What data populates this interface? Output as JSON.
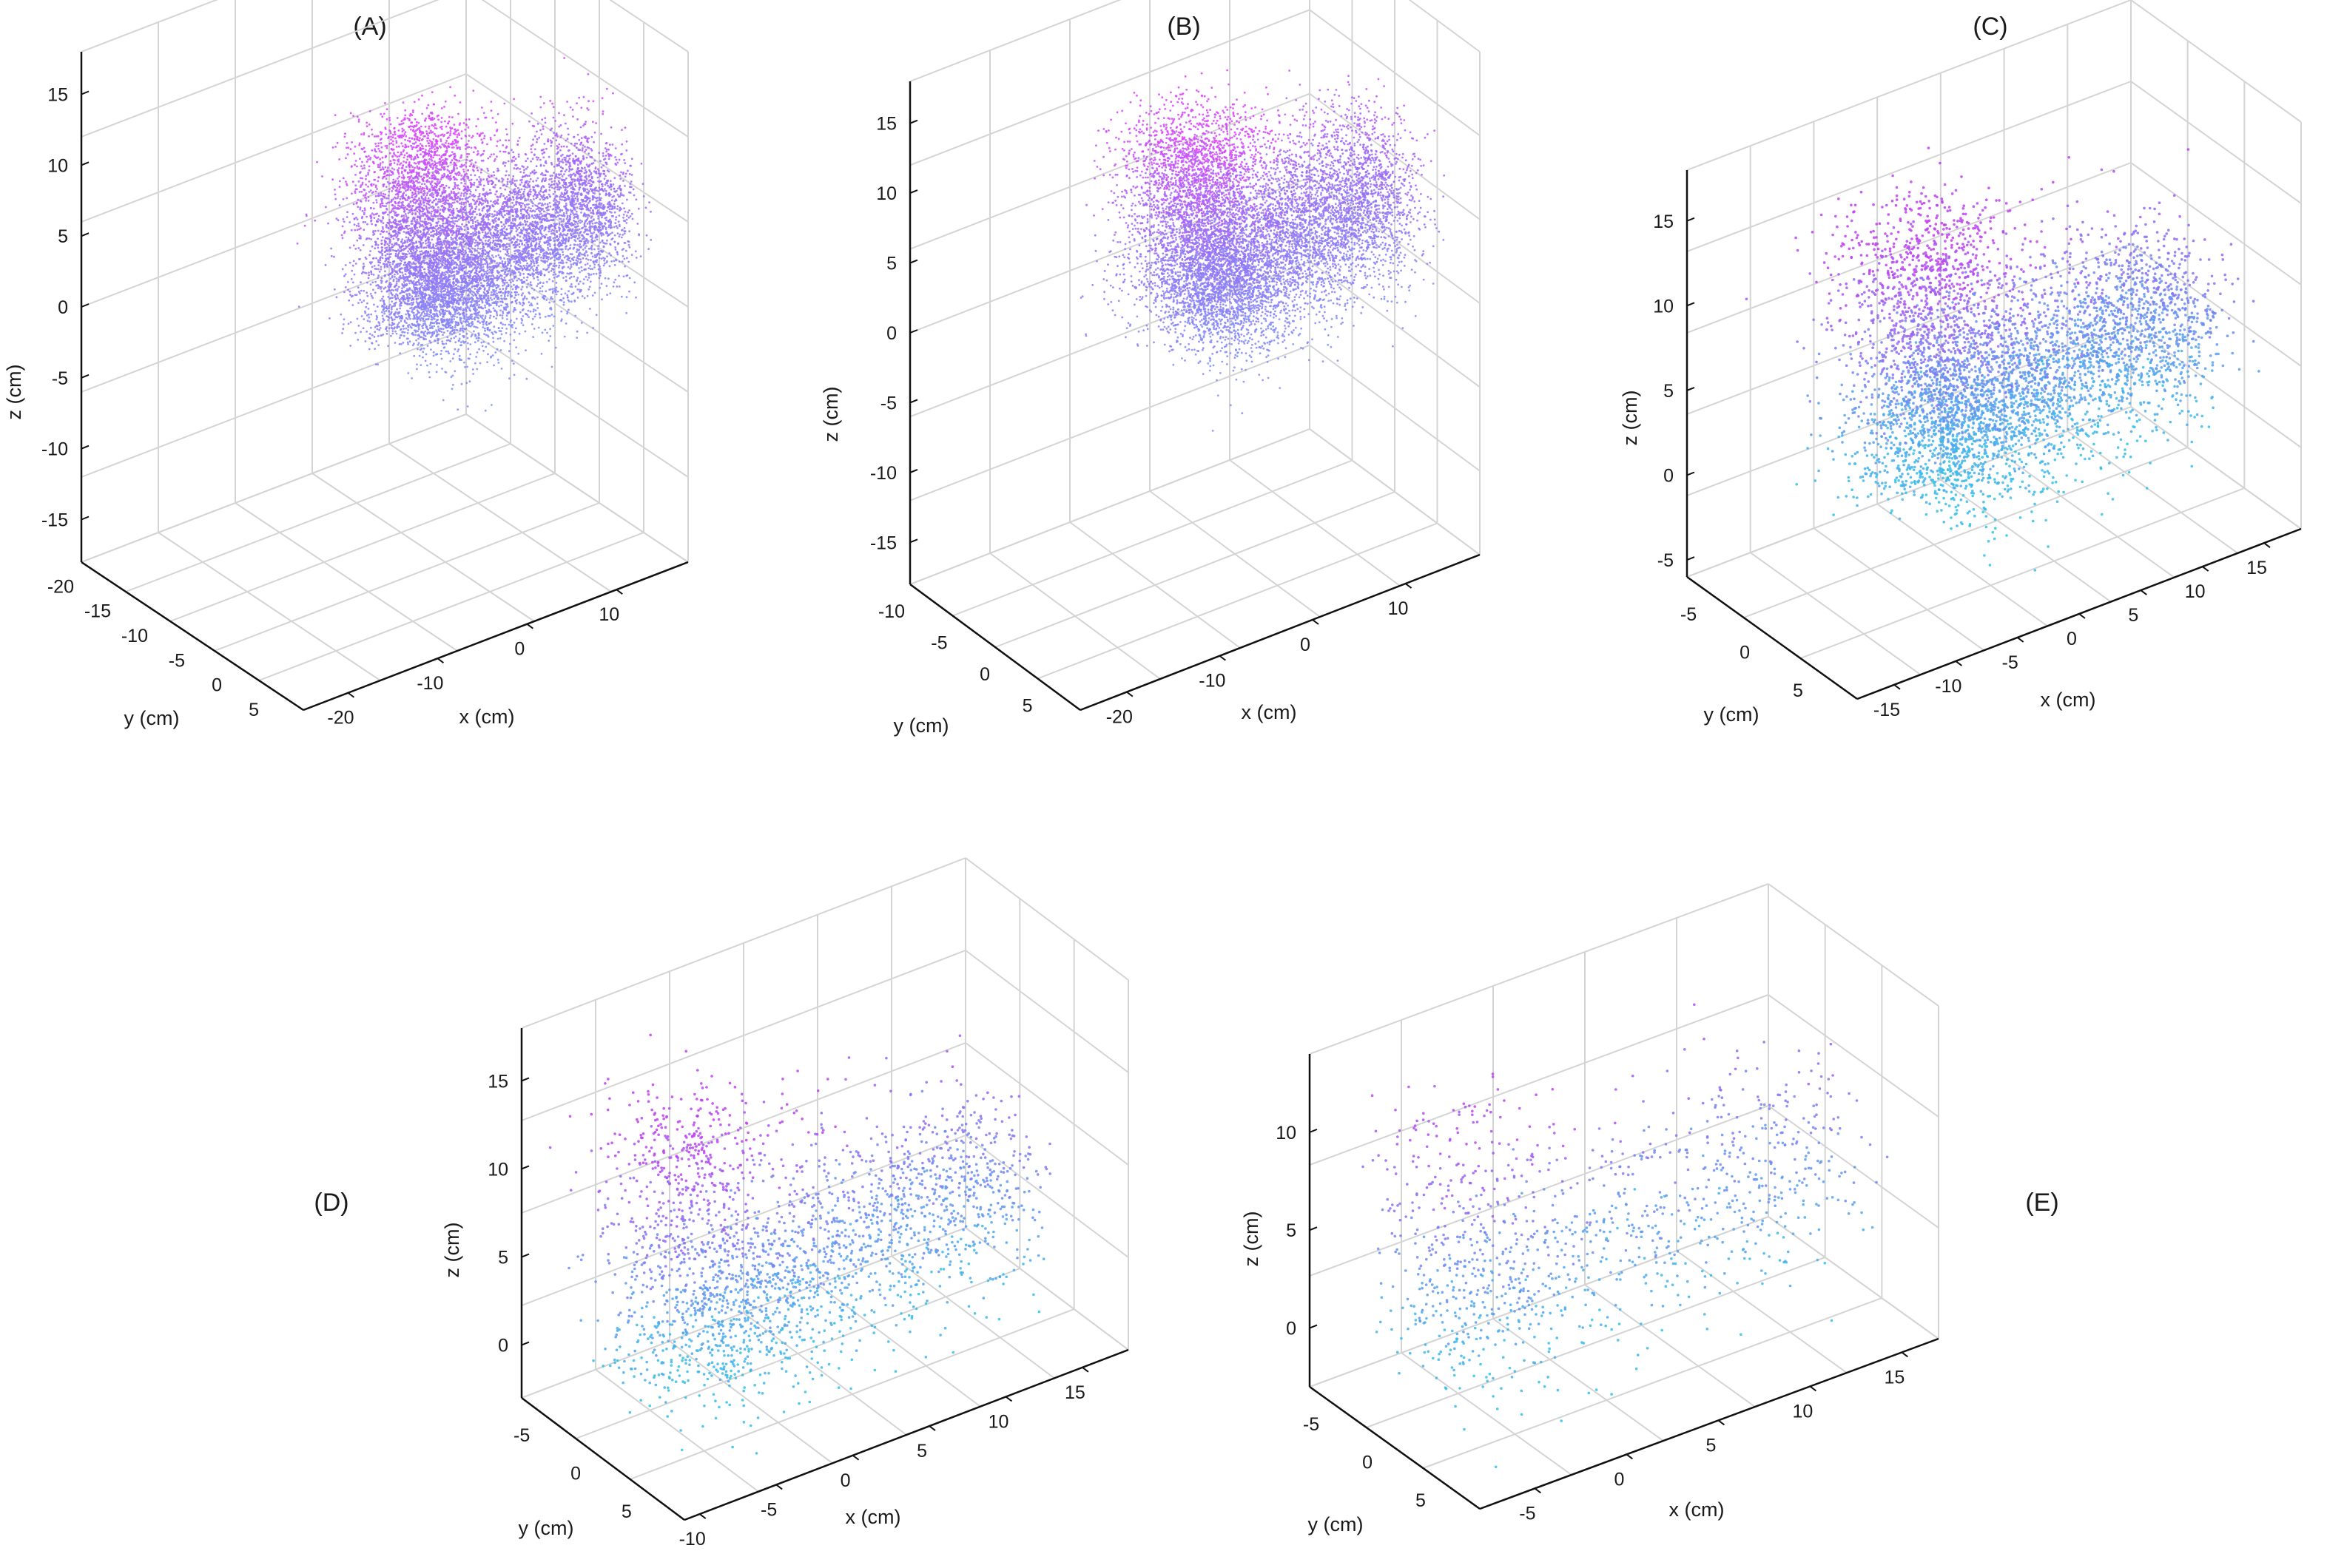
{
  "figure": {
    "description_free": true
  },
  "chart_data": [
    {
      "type": "scatter",
      "panel": "(A)",
      "xlabel": "x (cm)",
      "ylabel": "y (cm)",
      "zlabel": "z (cm)",
      "x_ticks": [
        "-20",
        "-10",
        "0",
        "10"
      ],
      "y_ticks": [
        "5",
        "0",
        "-5",
        "-10",
        "-15",
        "-20"
      ],
      "z_ticks": [
        "15",
        "10",
        "5",
        "0",
        "-5",
        "-10",
        "-15"
      ],
      "xlim": [
        -25,
        18
      ],
      "ylim": [
        -22,
        8
      ],
      "zlim": [
        -18,
        18
      ],
      "grid": true,
      "point_density": "dense",
      "colors": {
        "high": "#e040fb",
        "mid": "#9b6cf5",
        "low": "#7f8ff7"
      }
    },
    {
      "type": "scatter",
      "panel": "(B)",
      "xlabel": "x (cm)",
      "ylabel": "y (cm)",
      "zlabel": "z (cm)",
      "x_ticks": [
        "-20",
        "-10",
        "0",
        "10"
      ],
      "y_ticks": [
        "5",
        "0",
        "-5",
        "-10"
      ],
      "z_ticks": [
        "15",
        "10",
        "5",
        "0",
        "-5",
        "-10",
        "-15"
      ],
      "xlim": [
        -25,
        18
      ],
      "ylim": [
        -12,
        8
      ],
      "zlim": [
        -18,
        18
      ],
      "grid": true,
      "point_density": "dense",
      "colors": {
        "high": "#e040fb",
        "mid": "#9b6cf5",
        "low": "#7f8ff7"
      }
    },
    {
      "type": "scatter",
      "panel": "(C)",
      "xlabel": "x (cm)",
      "ylabel": "y (cm)",
      "zlabel": "z (cm)",
      "x_ticks": [
        "-15",
        "-10",
        "-5",
        "0",
        "5",
        "10",
        "15"
      ],
      "y_ticks": [
        "5",
        "0",
        "-5"
      ],
      "z_ticks": [
        "15",
        "10",
        "5",
        "0",
        "-5"
      ],
      "xlim": [
        -18,
        18
      ],
      "ylim": [
        -8,
        8
      ],
      "zlim": [
        -6,
        18
      ],
      "grid": true,
      "point_density": "medium",
      "colors": {
        "high": "#c040f0",
        "mid": "#7a80f2",
        "low": "#33c1e8"
      }
    },
    {
      "type": "scatter",
      "panel": "(D)",
      "xlabel": "x (cm)",
      "ylabel": "y (cm)",
      "zlabel": "z (cm)",
      "x_ticks": [
        "-10",
        "-5",
        "0",
        "5",
        "10",
        "15"
      ],
      "y_ticks": [
        "5",
        "0",
        "-5"
      ],
      "z_ticks": [
        "15",
        "10",
        "5",
        "0"
      ],
      "xlim": [
        -11,
        18
      ],
      "ylim": [
        -8,
        8
      ],
      "zlim": [
        -3,
        18
      ],
      "grid": true,
      "point_density": "sparse",
      "colors": {
        "high": "#c040f0",
        "mid": "#7a80f2",
        "low": "#33c1e8"
      }
    },
    {
      "type": "scatter",
      "panel": "(E)",
      "xlabel": "x (cm)",
      "ylabel": "y (cm)",
      "zlabel": "z (cm)",
      "x_ticks": [
        "-5",
        "0",
        "5",
        "10",
        "15"
      ],
      "y_ticks": [
        "5",
        "0",
        "-5"
      ],
      "z_ticks": [
        "10",
        "5",
        "0"
      ],
      "xlim": [
        -8,
        17
      ],
      "ylim": [
        -8,
        8
      ],
      "zlim": [
        -3,
        14
      ],
      "grid": true,
      "point_density": "very sparse",
      "colors": {
        "high": "#c040f0",
        "mid": "#7a80f2",
        "low": "#33c1e8"
      }
    }
  ]
}
